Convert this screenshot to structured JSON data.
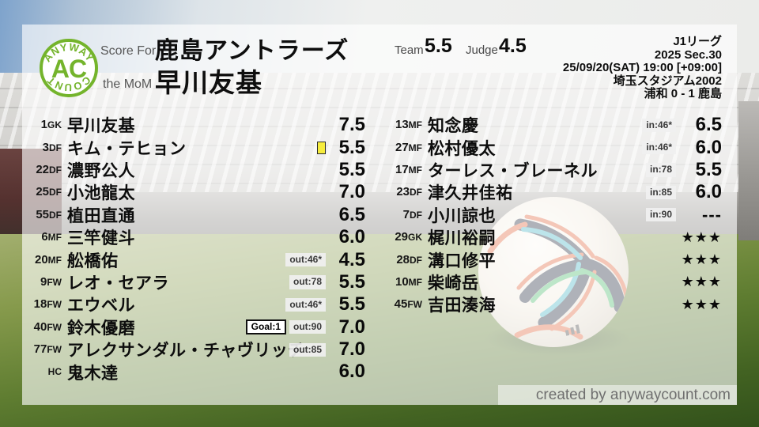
{
  "colors": {
    "accent_green": "#74b42c",
    "card_yellow": "#f6ec3d"
  },
  "logo": {
    "arc_top": "ANYWAY",
    "center": "AC",
    "arc_bottom": "COUNT"
  },
  "header": {
    "score_for_label": "Score For",
    "team_name": "鹿島アントラーズ",
    "mom_label": "the MoM",
    "mom_name": "早川友基",
    "team_label": "Team",
    "team_score": "5.5",
    "judge_label": "Judge",
    "judge_score": "4.5"
  },
  "match_info": {
    "league": "J1リーグ",
    "season": "2025 Sec.30",
    "kickoff": "25/09/20(SAT) 19:00 [+09:00]",
    "venue": "埼玉スタジアム2002",
    "result": "浦和 0 - 1 鹿島"
  },
  "players_left": [
    {
      "number": "1",
      "pos": "GK",
      "name": "早川友基",
      "badges": [],
      "rating": "7.5"
    },
    {
      "number": "3",
      "pos": "DF",
      "name": "キム・テヒョン",
      "badges": [
        {
          "type": "card",
          "label": "yellow-card"
        }
      ],
      "rating": "5.5"
    },
    {
      "number": "22",
      "pos": "DF",
      "name": "濃野公人",
      "badges": [],
      "rating": "5.5"
    },
    {
      "number": "25",
      "pos": "DF",
      "name": "小池龍太",
      "badges": [],
      "rating": "7.0"
    },
    {
      "number": "55",
      "pos": "DF",
      "name": "植田直通",
      "badges": [],
      "rating": "6.5"
    },
    {
      "number": "6",
      "pos": "MF",
      "name": "三竿健斗",
      "badges": [],
      "rating": "6.0"
    },
    {
      "number": "20",
      "pos": "MF",
      "name": "舩橋佑",
      "badges": [
        {
          "type": "sub",
          "label": "out:46*"
        }
      ],
      "rating": "4.5"
    },
    {
      "number": "9",
      "pos": "FW",
      "name": "レオ・セアラ",
      "badges": [
        {
          "type": "sub",
          "label": "out:78"
        }
      ],
      "rating": "5.5"
    },
    {
      "number": "18",
      "pos": "FW",
      "name": "エウベル",
      "badges": [
        {
          "type": "sub",
          "label": "out:46*"
        }
      ],
      "rating": "5.5"
    },
    {
      "number": "40",
      "pos": "FW",
      "name": "鈴木優磨",
      "badges": [
        {
          "type": "goal",
          "label": "Goal:1"
        },
        {
          "type": "sub",
          "label": "out:90"
        }
      ],
      "rating": "7.0"
    },
    {
      "number": "77",
      "pos": "FW",
      "name": "アレクサンダル・チャヴリッチ",
      "badges": [
        {
          "type": "sub",
          "label": "out:85"
        }
      ],
      "rating": "7.0"
    },
    {
      "number": "",
      "pos": "HC",
      "name": "鬼木達",
      "badges": [],
      "rating": "6.0"
    }
  ],
  "players_right": [
    {
      "number": "13",
      "pos": "MF",
      "name": "知念慶",
      "badges": [
        {
          "type": "sub",
          "label": "in:46*"
        }
      ],
      "rating": "6.5"
    },
    {
      "number": "27",
      "pos": "MF",
      "name": "松村優太",
      "badges": [
        {
          "type": "sub",
          "label": "in:46*"
        }
      ],
      "rating": "6.0"
    },
    {
      "number": "17",
      "pos": "MF",
      "name": "ターレス・ブレーネル",
      "badges": [
        {
          "type": "sub",
          "label": "in:78"
        }
      ],
      "rating": "5.5"
    },
    {
      "number": "23",
      "pos": "DF",
      "name": "津久井佳祐",
      "badges": [
        {
          "type": "sub",
          "label": "in:85"
        }
      ],
      "rating": "6.0"
    },
    {
      "number": "7",
      "pos": "DF",
      "name": "小川諒也",
      "badges": [
        {
          "type": "sub",
          "label": "in:90"
        }
      ],
      "rating": "---",
      "rating_style": "dash"
    },
    {
      "number": "29",
      "pos": "GK",
      "name": "梶川裕嗣",
      "badges": [],
      "rating": "★★★",
      "rating_style": "stars"
    },
    {
      "number": "28",
      "pos": "DF",
      "name": "溝口修平",
      "badges": [],
      "rating": "★★★",
      "rating_style": "stars"
    },
    {
      "number": "10",
      "pos": "MF",
      "name": "柴崎岳",
      "badges": [],
      "rating": "★★★",
      "rating_style": "stars"
    },
    {
      "number": "45",
      "pos": "FW",
      "name": "吉田湊海",
      "badges": [],
      "rating": "★★★",
      "rating_style": "stars"
    }
  ],
  "footer": {
    "credit": "created by anywaycount.com"
  }
}
